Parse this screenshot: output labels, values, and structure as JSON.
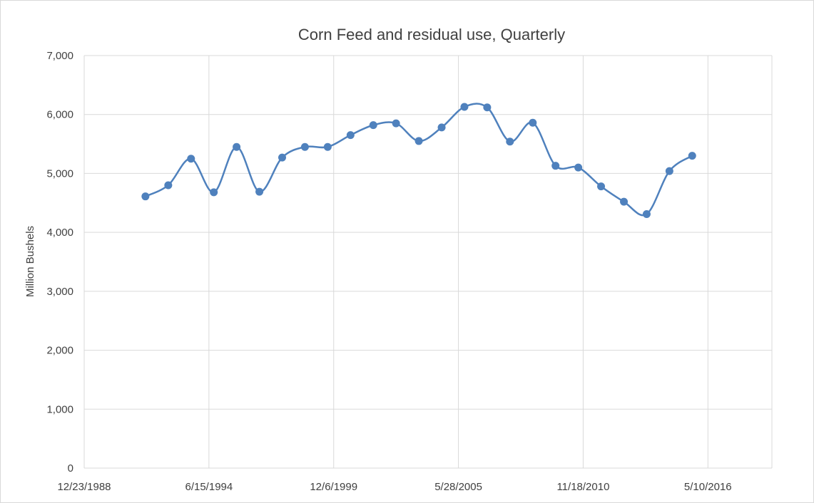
{
  "chart_data": {
    "type": "line",
    "title": "Corn Feed and residual use, Quarterly",
    "xlabel": "",
    "ylabel": "Million Bushels",
    "x_axis_kind": "date",
    "xlim": [
      "1988-12-23",
      "2019-03-02"
    ],
    "ylim": [
      0,
      7000
    ],
    "y_ticks": [
      0,
      1000,
      2000,
      3000,
      4000,
      5000,
      6000,
      7000
    ],
    "y_tick_labels": [
      "0",
      "1,000",
      "2,000",
      "3,000",
      "4,000",
      "5,000",
      "6,000",
      "7,000"
    ],
    "x_ticks": [
      "1988-12-23",
      "1994-06-15",
      "1999-12-06",
      "2005-05-28",
      "2010-11-18",
      "2016-05-10"
    ],
    "x_tick_labels": [
      "12/23/1988",
      "6/15/1994",
      "12/6/1999",
      "5/28/2005",
      "11/18/2010",
      "5/10/2016"
    ],
    "grid": "vertical and horizontal",
    "legend": "none",
    "smooth": true,
    "series": [
      {
        "color": "#4f81bd",
        "points": [
          {
            "x": "1991-09-01",
            "y": 4610
          },
          {
            "x": "1992-09-01",
            "y": 4800
          },
          {
            "x": "1993-09-01",
            "y": 5250
          },
          {
            "x": "1994-09-01",
            "y": 4680
          },
          {
            "x": "1995-09-01",
            "y": 5450
          },
          {
            "x": "1996-09-01",
            "y": 4690
          },
          {
            "x": "1997-09-01",
            "y": 5270
          },
          {
            "x": "1998-09-01",
            "y": 5450
          },
          {
            "x": "1999-09-01",
            "y": 5450
          },
          {
            "x": "2000-09-01",
            "y": 5650
          },
          {
            "x": "2001-09-01",
            "y": 5820
          },
          {
            "x": "2002-09-01",
            "y": 5850
          },
          {
            "x": "2003-09-01",
            "y": 5550
          },
          {
            "x": "2004-09-01",
            "y": 5780
          },
          {
            "x": "2005-09-01",
            "y": 6130
          },
          {
            "x": "2006-09-01",
            "y": 6120
          },
          {
            "x": "2007-09-01",
            "y": 5540
          },
          {
            "x": "2008-09-01",
            "y": 5860
          },
          {
            "x": "2009-09-01",
            "y": 5130
          },
          {
            "x": "2010-09-01",
            "y": 5100
          },
          {
            "x": "2011-09-01",
            "y": 4780
          },
          {
            "x": "2012-09-01",
            "y": 4520
          },
          {
            "x": "2013-09-01",
            "y": 4310
          },
          {
            "x": "2014-09-01",
            "y": 5040
          },
          {
            "x": "2015-09-01",
            "y": 5300
          }
        ]
      }
    ]
  }
}
